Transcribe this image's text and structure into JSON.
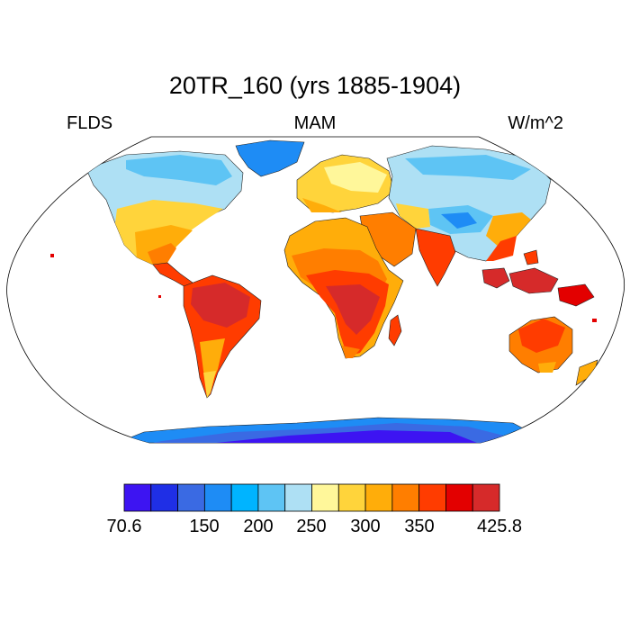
{
  "map": {
    "title": "20TR_160 (yrs 1885-1904)",
    "variable": "FLDS",
    "season": "MAM",
    "units": "W/m^2",
    "projection": "robinson",
    "region": "global"
  },
  "colorbar": {
    "min_label": "70.6",
    "max_label": "425.8",
    "tick_labels": [
      "70.6",
      "150",
      "200",
      "250",
      "300",
      "350",
      "425.8"
    ],
    "colors": [
      "#3d14f2",
      "#1f2fe6",
      "#3a6ae3",
      "#1e8cf5",
      "#00b4ff",
      "#5ec4f4",
      "#aee0f4",
      "#fff79a",
      "#ffd43b",
      "#ffad0a",
      "#ff7e00",
      "#ff3c00",
      "#e30000",
      "#d62a2a"
    ]
  }
}
